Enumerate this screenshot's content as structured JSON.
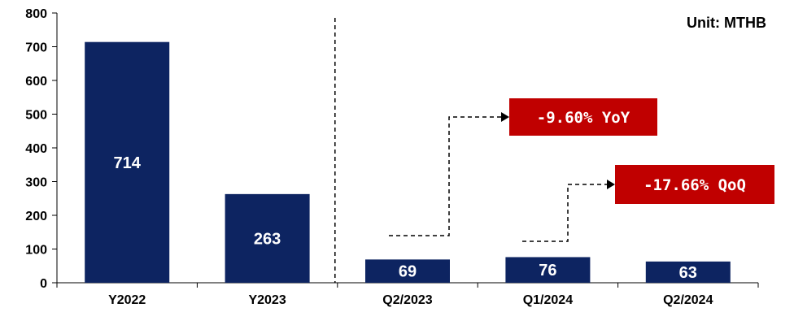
{
  "chart_data": {
    "type": "bar",
    "unit_label": "Unit: MTHB",
    "categories": [
      "Y2022",
      "Y2023",
      "Q2/2023",
      "Q1/2024",
      "Q2/2024"
    ],
    "values": [
      714,
      263,
      69,
      76,
      63
    ],
    "value_labels": [
      "714",
      "263",
      "69",
      "76",
      "63"
    ],
    "ylim": [
      0,
      800
    ],
    "yticks": [
      0,
      100,
      200,
      300,
      400,
      500,
      600,
      700,
      800
    ],
    "grid": false,
    "bar_color": "#0d2461",
    "annotations": [
      {
        "text": "-9.60% YoY",
        "from_category": "Q2/2023",
        "color": "#c00000"
      },
      {
        "text": "-17.66% QoQ",
        "from_category": "Q1/2024",
        "color": "#c00000"
      }
    ]
  }
}
